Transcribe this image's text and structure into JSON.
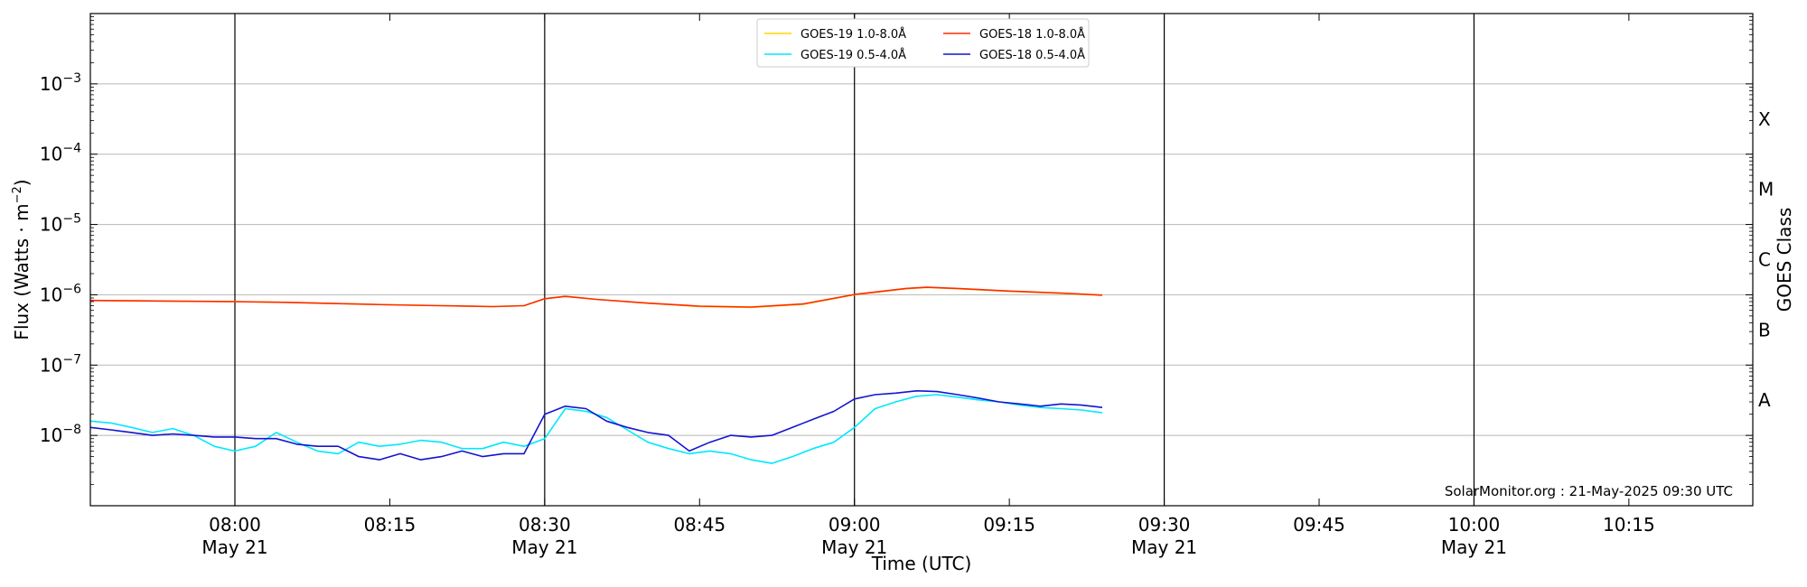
{
  "chart_data": {
    "type": "line",
    "xlabel": "Time (UTC)",
    "ylabel_main": "Flux (Watts · m",
    "ylabel_sup": "−2",
    "ylabel_end": ")",
    "y2label": "GOES Class",
    "yscale": "log",
    "ylim": [
      1e-09,
      0.01
    ],
    "xlim": [
      "07:46",
      "10:27"
    ],
    "x_ticks": [
      {
        "t": "08:00",
        "label": "08:00",
        "sub": "May 21",
        "major": true
      },
      {
        "t": "08:15",
        "label": "08:15",
        "sub": "",
        "major": false
      },
      {
        "t": "08:30",
        "label": "08:30",
        "sub": "May 21",
        "major": true
      },
      {
        "t": "08:45",
        "label": "08:45",
        "sub": "",
        "major": false
      },
      {
        "t": "09:00",
        "label": "09:00",
        "sub": "May 21",
        "major": true
      },
      {
        "t": "09:15",
        "label": "09:15",
        "sub": "",
        "major": false
      },
      {
        "t": "09:30",
        "label": "09:30",
        "sub": "May 21",
        "major": true
      },
      {
        "t": "09:45",
        "label": "09:45",
        "sub": "",
        "major": false
      },
      {
        "t": "10:00",
        "label": "10:00",
        "sub": "May 21",
        "major": true
      },
      {
        "t": "10:15",
        "label": "10:15",
        "sub": "",
        "major": false
      }
    ],
    "y_ticks": [
      {
        "v": 1e-08,
        "base": "10",
        "exp": "−8"
      },
      {
        "v": 1e-07,
        "base": "10",
        "exp": "−7"
      },
      {
        "v": 1e-06,
        "base": "10",
        "exp": "−6"
      },
      {
        "v": 1e-05,
        "base": "10",
        "exp": "−5"
      },
      {
        "v": 0.0001,
        "base": "10",
        "exp": "−4"
      },
      {
        "v": 0.001,
        "base": "10",
        "exp": "−3"
      }
    ],
    "goes_classes": [
      {
        "label": "A",
        "v": 3.16e-08
      },
      {
        "label": "B",
        "v": 3.16e-07
      },
      {
        "label": "C",
        "v": 3.16e-06
      },
      {
        "label": "M",
        "v": 3.16e-05
      },
      {
        "label": "X",
        "v": 0.000316
      }
    ],
    "grid": true,
    "legend_position": "top-center",
    "legend_order": [
      0,
      2,
      1,
      3
    ],
    "series": [
      {
        "name": "GOES-19 1.0-8.0Å",
        "color": "#ffd700",
        "x": [
          "07:46",
          "07:50",
          "07:55",
          "08:00",
          "08:05",
          "08:10",
          "08:15",
          "08:20",
          "08:25",
          "08:28",
          "08:30",
          "08:32",
          "08:35",
          "08:40",
          "08:45",
          "08:50",
          "08:55",
          "09:00",
          "09:05",
          "09:07",
          "09:10",
          "09:15",
          "09:20",
          "09:24"
        ],
        "y": [
          8.3e-07,
          8.2e-07,
          8.1e-07,
          8e-07,
          7.8e-07,
          7.5e-07,
          7.2e-07,
          7e-07,
          6.8e-07,
          7e-07,
          8.8e-07,
          9.5e-07,
          8.6e-07,
          7.6e-07,
          6.8e-07,
          6.6e-07,
          7.3e-07,
          1e-06,
          1.22e-06,
          1.27e-06,
          1.22e-06,
          1.12e-06,
          1.05e-06,
          9.8e-07
        ]
      },
      {
        "name": "GOES-18 1.0-8.0Å",
        "color": "#ff2a00",
        "x": [
          "07:46",
          "07:50",
          "07:55",
          "08:00",
          "08:05",
          "08:10",
          "08:15",
          "08:20",
          "08:25",
          "08:28",
          "08:30",
          "08:32",
          "08:35",
          "08:40",
          "08:45",
          "08:50",
          "08:55",
          "09:00",
          "09:05",
          "09:07",
          "09:10",
          "09:15",
          "09:20",
          "09:24"
        ],
        "y": [
          8.3e-07,
          8.2e-07,
          8.1e-07,
          8e-07,
          7.8e-07,
          7.5e-07,
          7.2e-07,
          7e-07,
          6.8e-07,
          7e-07,
          8.8e-07,
          9.5e-07,
          8.6e-07,
          7.6e-07,
          6.9e-07,
          6.7e-07,
          7.4e-07,
          1.01e-06,
          1.23e-06,
          1.28e-06,
          1.23e-06,
          1.13e-06,
          1.06e-06,
          9.9e-07
        ]
      },
      {
        "name": "GOES-19 0.5-4.0Å",
        "color": "#00e8ff",
        "x": [
          "07:46",
          "07:48",
          "07:50",
          "07:52",
          "07:54",
          "07:56",
          "07:58",
          "08:00",
          "08:02",
          "08:04",
          "08:06",
          "08:08",
          "08:10",
          "08:12",
          "08:14",
          "08:16",
          "08:18",
          "08:20",
          "08:22",
          "08:24",
          "08:26",
          "08:28",
          "08:30",
          "08:32",
          "08:34",
          "08:36",
          "08:38",
          "08:40",
          "08:42",
          "08:44",
          "08:46",
          "08:48",
          "08:50",
          "08:52",
          "08:54",
          "08:56",
          "08:58",
          "09:00",
          "09:02",
          "09:04",
          "09:06",
          "09:08",
          "09:10",
          "09:12",
          "09:14",
          "09:16",
          "09:18",
          "09:20",
          "09:22",
          "09:24"
        ],
        "y": [
          1.6e-08,
          1.5e-08,
          1.3e-08,
          1.1e-08,
          1.25e-08,
          1e-08,
          7e-09,
          6e-09,
          7e-09,
          1.1e-08,
          8e-09,
          6e-09,
          5.5e-09,
          8e-09,
          7e-09,
          7.5e-09,
          8.5e-09,
          8e-09,
          6.5e-09,
          6.5e-09,
          8e-09,
          7e-09,
          9e-09,
          2.4e-08,
          2.2e-08,
          1.8e-08,
          1.2e-08,
          8e-09,
          6.5e-09,
          5.5e-09,
          6e-09,
          5.5e-09,
          4.5e-09,
          4e-09,
          5e-09,
          6.5e-09,
          8e-09,
          1.3e-08,
          2.4e-08,
          3e-08,
          3.6e-08,
          3.8e-08,
          3.5e-08,
          3.2e-08,
          3e-08,
          2.7e-08,
          2.5e-08,
          2.4e-08,
          2.3e-08,
          2.1e-08
        ]
      },
      {
        "name": "GOES-18 0.5-4.0Å",
        "color": "#1414d0",
        "x": [
          "07:46",
          "07:48",
          "07:50",
          "07:52",
          "07:54",
          "07:56",
          "07:58",
          "08:00",
          "08:02",
          "08:04",
          "08:06",
          "08:08",
          "08:10",
          "08:12",
          "08:14",
          "08:16",
          "08:18",
          "08:20",
          "08:22",
          "08:24",
          "08:26",
          "08:28",
          "08:30",
          "08:32",
          "08:34",
          "08:36",
          "08:38",
          "08:40",
          "08:42",
          "08:44",
          "08:46",
          "08:48",
          "08:50",
          "08:52",
          "08:54",
          "08:56",
          "08:58",
          "09:00",
          "09:02",
          "09:04",
          "09:06",
          "09:08",
          "09:10",
          "09:12",
          "09:14",
          "09:16",
          "09:18",
          "09:20",
          "09:22",
          "09:24"
        ],
        "y": [
          1.3e-08,
          1.2e-08,
          1.1e-08,
          1e-08,
          1.05e-08,
          1e-08,
          9.5e-09,
          9.5e-09,
          9e-09,
          9e-09,
          7.5e-09,
          7e-09,
          7e-09,
          5e-09,
          4.5e-09,
          5.5e-09,
          4.5e-09,
          5e-09,
          6e-09,
          5e-09,
          5.5e-09,
          5.5e-09,
          2e-08,
          2.6e-08,
          2.4e-08,
          1.6e-08,
          1.3e-08,
          1.1e-08,
          1e-08,
          6e-09,
          8e-09,
          1e-08,
          9.5e-09,
          1e-08,
          1.3e-08,
          1.7e-08,
          2.2e-08,
          3.3e-08,
          3.8e-08,
          4e-08,
          4.3e-08,
          4.2e-08,
          3.8e-08,
          3.4e-08,
          3e-08,
          2.8e-08,
          2.6e-08,
          2.8e-08,
          2.7e-08,
          2.5e-08
        ]
      }
    ],
    "credit": "SolarMonitor.org : 21-May-2025 09:30 UTC"
  }
}
